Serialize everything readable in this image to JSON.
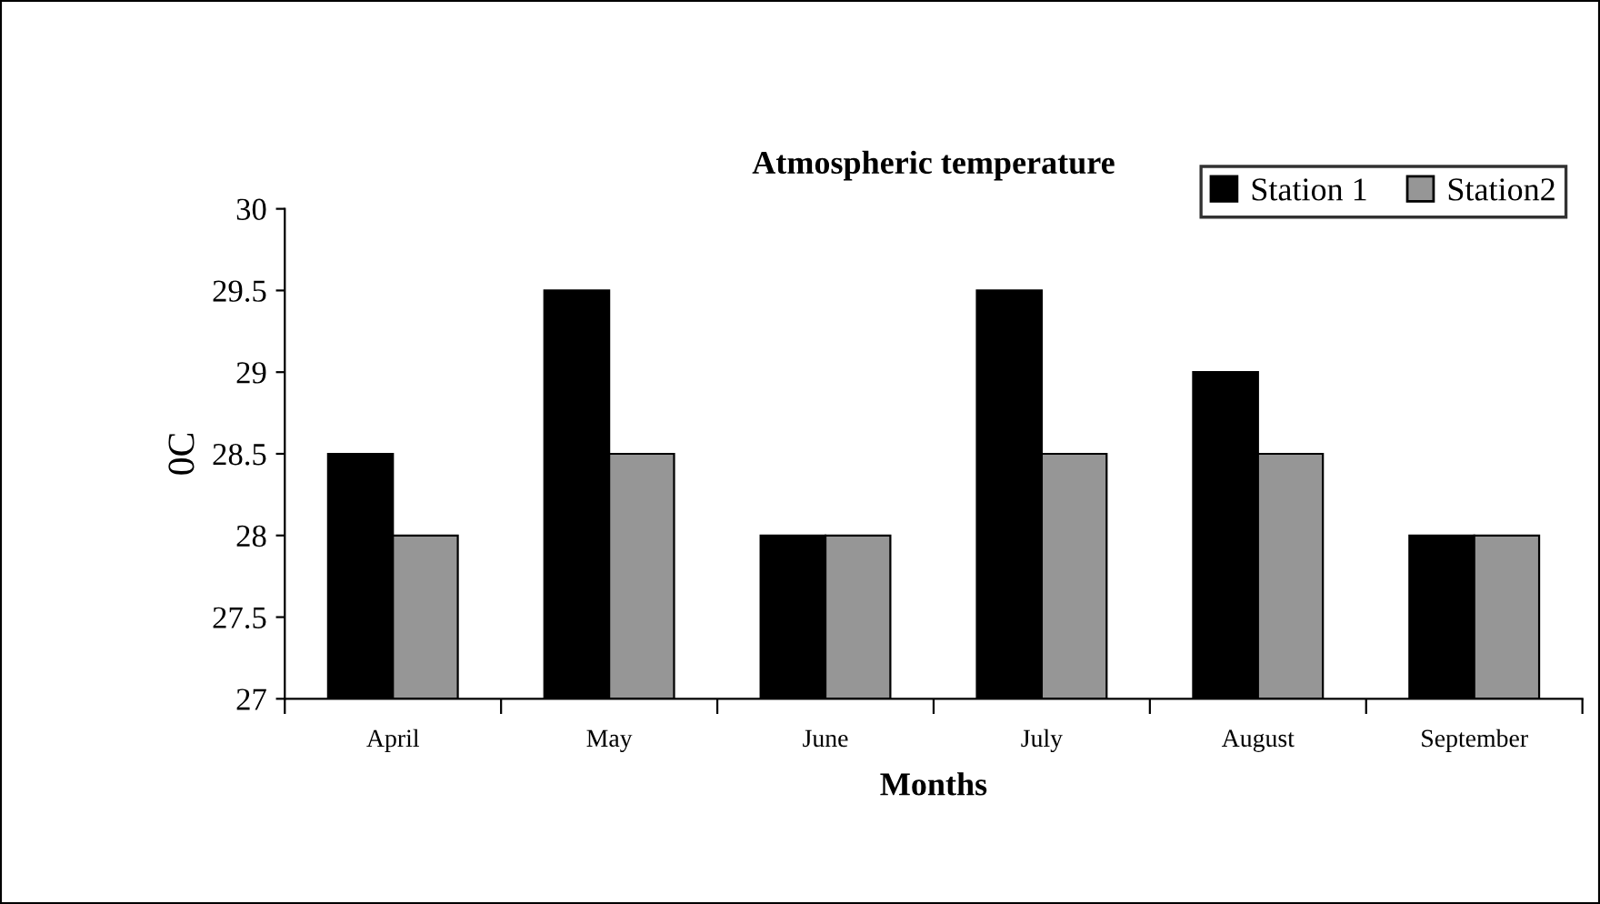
{
  "chart_data": {
    "type": "bar",
    "title": "Atmospheric temperature",
    "xlabel": "Months",
    "ylabel": "0C",
    "categories": [
      "April",
      "May",
      "June",
      "July",
      "August",
      "September"
    ],
    "series": [
      {
        "name": "Station 1",
        "color": "#000000",
        "values": [
          28.5,
          29.5,
          28,
          29.5,
          29,
          28
        ]
      },
      {
        "name": "Station2",
        "color": "#969696",
        "values": [
          28,
          28.5,
          28,
          28.5,
          28.5,
          28
        ]
      }
    ],
    "ylim": [
      27,
      30
    ],
    "yticks": [
      27,
      {
        "value": 27.5,
        "label": "27.5"
      },
      28,
      {
        "value": 28.5,
        "label": "28.5"
      },
      29,
      {
        "value": 29.5,
        "label": "29.5"
      },
      30
    ],
    "grid": false,
    "legend": "top right"
  }
}
